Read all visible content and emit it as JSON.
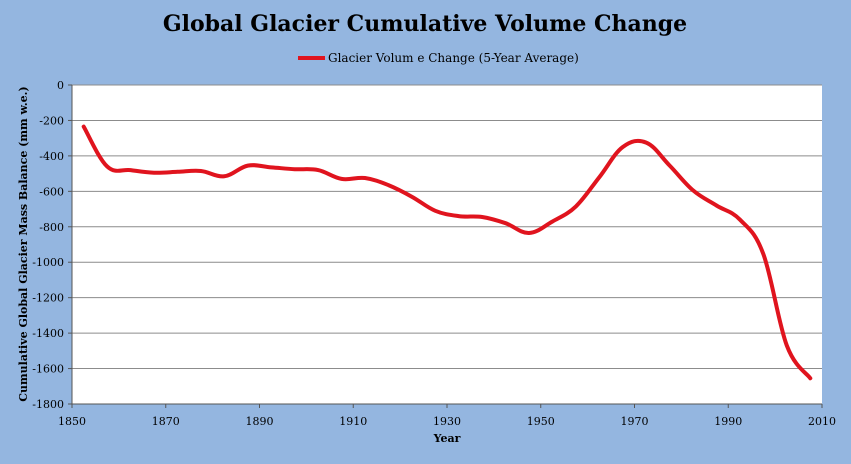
{
  "chart_data": {
    "type": "line",
    "title": "Global Glacier Cumulative Volume Change",
    "xlabel": "Year",
    "ylabel": "Cumulative  Global  Glacier Mass  Balance  (mm w.e.)",
    "xlim": [
      1850,
      2010
    ],
    "ylim": [
      -1800,
      0
    ],
    "xticks": [
      1850,
      1870,
      1890,
      1910,
      1930,
      1950,
      1970,
      1990,
      2010
    ],
    "yticks": [
      0,
      -200,
      -400,
      -600,
      -800,
      -1000,
      -1200,
      -1400,
      -1600,
      -1800
    ],
    "grid": true,
    "legend_position": "top-center",
    "series": [
      {
        "name": "Glacier Volum e Change (5-Year Average)",
        "color": "#e0141e",
        "x": [
          1852.5,
          1857.5,
          1862.5,
          1867.5,
          1872.5,
          1877.5,
          1882.5,
          1887.5,
          1892.5,
          1897.5,
          1902.5,
          1907.5,
          1912.5,
          1917.5,
          1922.5,
          1927.5,
          1932.5,
          1937.5,
          1942.5,
          1947.5,
          1952.5,
          1957.5,
          1962.5,
          1967.5,
          1972.5,
          1977.5,
          1982.5,
          1987.5,
          1992.5,
          1997.5,
          2002.5,
          2007.5
        ],
        "y": [
          -235,
          -460,
          -480,
          -495,
          -490,
          -485,
          -515,
          -455,
          -465,
          -475,
          -480,
          -530,
          -525,
          -565,
          -630,
          -710,
          -740,
          -745,
          -780,
          -835,
          -770,
          -685,
          -520,
          -350,
          -325,
          -455,
          -595,
          -680,
          -760,
          -955,
          -1470,
          -1655
        ]
      }
    ]
  }
}
